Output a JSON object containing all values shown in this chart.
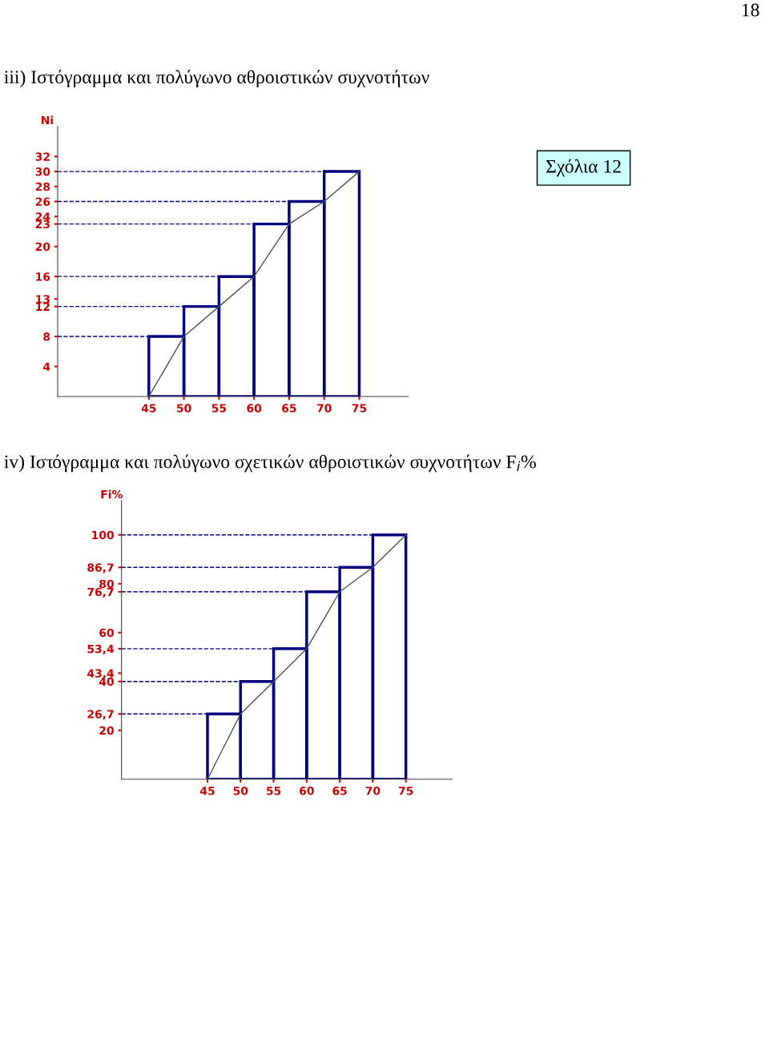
{
  "chart_data": [
    {
      "type": "histogram",
      "title": "iii) Ιστόγραμμα και πολύγωνο αθροιστικών συχνοτήτων",
      "ylabel": "Ni",
      "bins": [
        45,
        50,
        55,
        60,
        65,
        70,
        75
      ],
      "values": [
        8,
        12,
        16,
        23,
        26,
        30
      ],
      "color": "#000080",
      "series": [
        {
          "type": "line",
          "x": [
            45,
            50,
            55,
            60,
            65,
            70,
            75
          ],
          "values": [
            0,
            8,
            12,
            16,
            23,
            26,
            30
          ],
          "color": "#505050"
        }
      ],
      "xlim": [
        32,
        82
      ],
      "xticks": [
        45,
        50,
        55,
        60,
        65,
        70,
        75
      ],
      "ylim": [
        0,
        36
      ],
      "yticks": [
        4,
        8,
        12,
        13,
        16,
        20,
        23,
        24,
        26,
        28,
        30,
        32
      ],
      "ref_lines": [
        {
          "axis": "y",
          "value": 8,
          "color": "#000080",
          "line_style": "dashed"
        },
        {
          "axis": "y",
          "value": 12,
          "color": "#000080",
          "line_style": "dashed"
        },
        {
          "axis": "y",
          "value": 16,
          "color": "#000080",
          "line_style": "dashed"
        },
        {
          "axis": "y",
          "value": 23,
          "color": "#000080",
          "line_style": "dashed"
        },
        {
          "axis": "y",
          "value": 26,
          "color": "#000080",
          "line_style": "dashed"
        },
        {
          "axis": "y",
          "value": 30,
          "color": "#000080",
          "line_style": "dashed"
        }
      ],
      "annotations": [
        "18",
        "Σχόλια 12"
      ],
      "grid": false,
      "legend": false
    },
    {
      "type": "histogram",
      "title": "iv) Ιστόγραμμα και πολύγωνο σχετικών αθροιστικών συχνοτήτων F$_{i}$%",
      "ylabel": "Fi%",
      "bins": [
        45,
        50,
        55,
        60,
        65,
        70,
        75
      ],
      "values": [
        26.7,
        40,
        53.4,
        76.7,
        86.7,
        100
      ],
      "color": "#000080",
      "series": [
        {
          "type": "line",
          "x": [
            45,
            50,
            55,
            60,
            65,
            70,
            75
          ],
          "values": [
            0,
            26.7,
            40,
            53.4,
            76.7,
            86.7,
            100
          ],
          "color": "#505050"
        }
      ],
      "xlim": [
        32,
        82
      ],
      "xticks": [
        45,
        50,
        55,
        60,
        65,
        70,
        75
      ],
      "ylim": [
        0,
        114
      ],
      "yticks": [
        20,
        {
          "value": 26.7,
          "label": "26,7"
        },
        40,
        {
          "value": 43.4,
          "label": "43,4"
        },
        {
          "value": 53.4,
          "label": "53,4"
        },
        60,
        {
          "value": 76.7,
          "label": "76,7"
        },
        80,
        {
          "value": 86.7,
          "label": "86,7"
        },
        100
      ],
      "ref_lines": [
        {
          "axis": "y",
          "value": 26.7,
          "color": "#000080",
          "line_style": "dashed"
        },
        {
          "axis": "y",
          "value": 40,
          "color": "#000080",
          "line_style": "dashed"
        },
        {
          "axis": "y",
          "value": 53.4,
          "color": "#000080",
          "line_style": "dashed"
        },
        {
          "axis": "y",
          "value": 76.7,
          "color": "#000080",
          "line_style": "dashed"
        },
        {
          "axis": "y",
          "value": 86.7,
          "color": "#000080",
          "line_style": "dashed"
        },
        {
          "axis": "y",
          "value": 100,
          "color": "#000080",
          "line_style": "dashed"
        }
      ],
      "grid": false,
      "legend": false
    }
  ]
}
